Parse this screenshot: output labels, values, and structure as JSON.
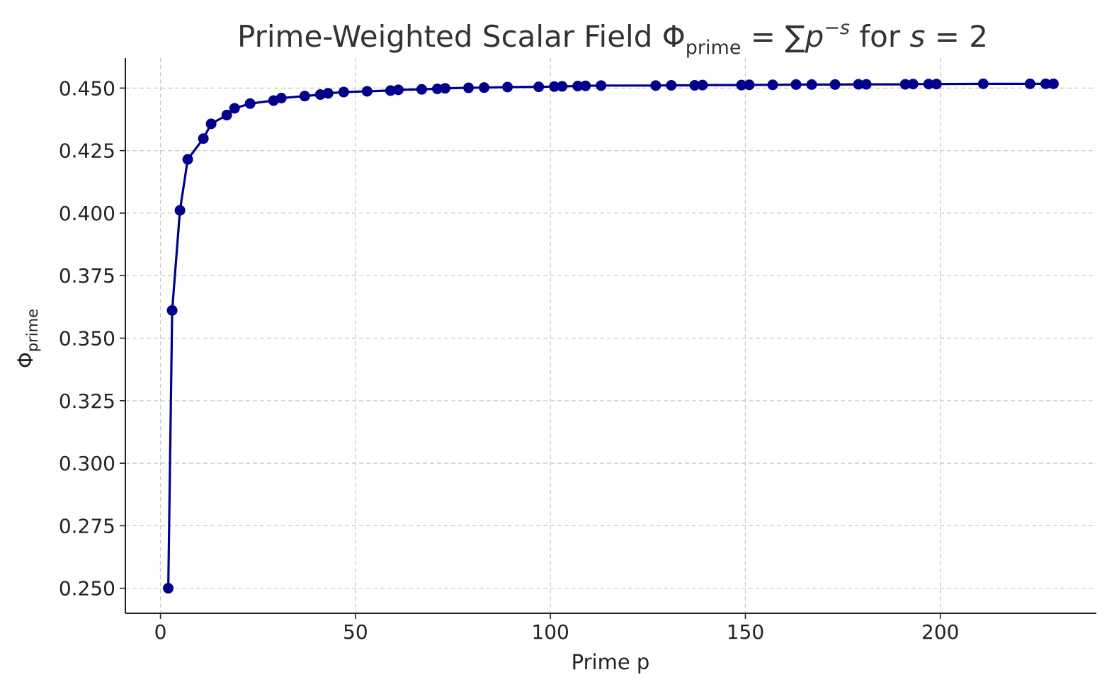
{
  "chart_data": {
    "type": "line",
    "title": {
      "prefix": "Prime-Weighted Scalar Field Φ",
      "prefix_sub": "prime",
      "eq": " = ∑",
      "p": "p",
      "p_sup": "−s",
      "mid": " for ",
      "s": "s",
      "end": " = 2"
    },
    "xlabel": "Prime p",
    "ylabel": {
      "base": "Φ",
      "sub": "prime"
    },
    "xlim": [
      -9,
      240
    ],
    "ylim": [
      0.24,
      0.462
    ],
    "xticks": [
      0,
      50,
      100,
      150,
      200
    ],
    "xtick_labels": [
      "0",
      "50",
      "100",
      "150",
      "200"
    ],
    "yticks": [
      0.25,
      0.275,
      0.3,
      0.325,
      0.35,
      0.375,
      0.4,
      0.425,
      0.45
    ],
    "ytick_labels": [
      "0.250",
      "0.275",
      "0.300",
      "0.325",
      "0.350",
      "0.375",
      "0.400",
      "0.425",
      "0.450"
    ],
    "grid": true,
    "color": "#00008b",
    "series": [
      {
        "x": [
          2,
          3,
          5,
          7,
          11,
          13,
          17,
          19,
          23,
          29,
          31,
          37,
          41,
          43,
          47,
          53,
          59,
          61,
          67,
          71,
          73,
          79,
          83,
          89,
          97,
          101,
          103,
          107,
          109,
          113,
          127,
          131,
          137,
          139,
          149,
          151,
          157,
          163,
          167,
          173,
          179,
          181,
          191,
          193,
          197,
          199,
          211,
          223,
          227,
          229
        ],
        "y": [
          0.25,
          0.3611,
          0.4011,
          0.4215,
          0.4298,
          0.4357,
          0.4392,
          0.4419,
          0.4438,
          0.445,
          0.446,
          0.4468,
          0.4474,
          0.4479,
          0.4484,
          0.4487,
          0.449,
          0.4493,
          0.4495,
          0.4497,
          0.4499,
          0.4501,
          0.4502,
          0.4504,
          0.4505,
          0.4506,
          0.4507,
          0.4508,
          0.4509,
          0.451,
          0.451,
          0.4511,
          0.4511,
          0.4512,
          0.4512,
          0.4513,
          0.4513,
          0.4514,
          0.4514,
          0.4514,
          0.4515,
          0.4515,
          0.4515,
          0.4516,
          0.4516,
          0.4516,
          0.4517,
          0.4517,
          0.4517,
          0.4517
        ]
      }
    ]
  }
}
